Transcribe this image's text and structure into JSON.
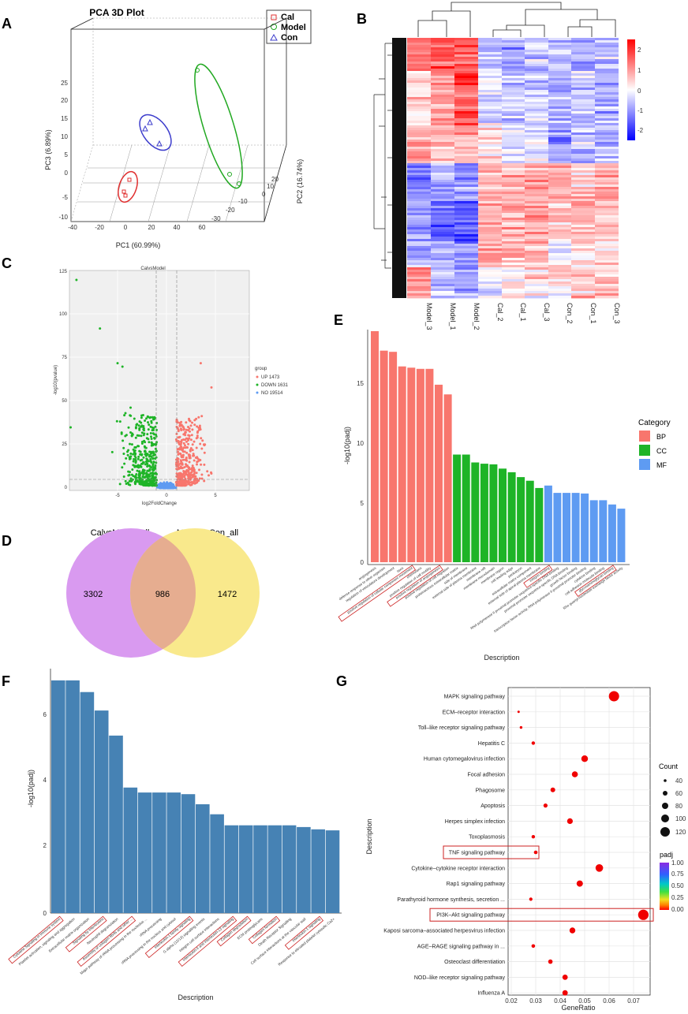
{
  "colors": {
    "cal": "#e03030",
    "model": "#21a821",
    "con": "#3d3dcc",
    "bp": "#f8766d",
    "cc": "#1eb427",
    "mf": "#5e9bf2",
    "steel": "#4682b4",
    "venn_left": "#d99af0",
    "venn_right": "#f9e98c",
    "venn_overlap": "#e6ad90",
    "heat_high": "#ff0000",
    "heat_low": "#0000ff",
    "highlight_box": "#cc2222"
  },
  "panelA": {
    "label": "A",
    "title": "PCA 3D Plot",
    "legend": [
      "Cal",
      "Model",
      "Con"
    ],
    "xlabel": "PC1 (60.99%)",
    "ylabel": "PC3 (6.89%)",
    "zlabel": "PC2 (16.74%)",
    "x_ticks": [
      "-40",
      "-20",
      "0",
      "20",
      "40",
      "60"
    ],
    "y_ticks": [
      "25",
      "20",
      "15",
      "10",
      "5",
      "0",
      "-5",
      "-10"
    ],
    "z_ticks": [
      "20",
      "10",
      "0",
      "-10",
      "-20",
      "-30"
    ]
  },
  "panelB": {
    "label": "B",
    "samples": [
      "Model_3",
      "Model_1",
      "Model_2",
      "Cal_2",
      "Cal_1",
      "Cal_3",
      "Con_2",
      "Con_1",
      "Con_3"
    ],
    "scale_ticks": [
      "2",
      "1",
      "0",
      "-1",
      "-2"
    ]
  },
  "panelC": {
    "label": "C",
    "title": "CalvsModel",
    "xlabel": "log2FoldChange",
    "ylabel": "-log10(pvalue)",
    "y_ticks": [
      "125",
      "100",
      "75",
      "50",
      "25",
      "0"
    ],
    "x_ticks": [
      "-5",
      "0",
      "5"
    ],
    "legend_title": "group",
    "legend_items": [
      "UP 1473",
      "DOWN 1631",
      "NO 19514"
    ]
  },
  "panelD": {
    "label": "D",
    "left_title": "CalvsModel_all",
    "right_title": "ModelvsCon_all",
    "left_only": "3302",
    "overlap": "986",
    "right_only": "1472"
  },
  "panelE": {
    "label": "E",
    "ylabel": "-log10(padj)",
    "xlabel": "Description",
    "y_ticks": [
      "15",
      "10",
      "5",
      "0"
    ],
    "legend_title": "Category",
    "legend_items": [
      "BP",
      "CC",
      "MF"
    ],
    "chart_data": {
      "type": "bar",
      "ylabel": "-log10(padj)",
      "xlabel": "Description",
      "ylim": [
        0,
        19
      ],
      "categories": [
        "angiogenesis",
        "defense response to other organism",
        "regulation of vasculature development",
        "taxis",
        "positive regulation of cellular component movement",
        "chemotaxis",
        "positive regulation of cell motility",
        "positive regulation of angiogenesis",
        "positive regulation of cell migration",
        "proteinaceous extracellular matrix",
        "side of membrane",
        "external side of plasma membrane",
        "membrane raft",
        "membrane microdomain",
        "membrane region",
        "cell leading edge",
        "perikaryon",
        "extracellular matrix component",
        "external side of apical plasma membrane",
        "integrin binding",
        "RNA polymerase II proximal promoter sequence-specific DNA binding",
        "proximal promoter sequence-specific DNA binding",
        "growth factor binding",
        "transcription factor activity, RNA polymerase II proximal promoter binding",
        "cytokine binding",
        "cell adhesion molecule binding",
        "glycosaminoglycan binding",
        "Rho guanyl-nucleotide exchange factor activity"
      ],
      "values": [
        19.0,
        17.4,
        17.3,
        16.1,
        16.0,
        15.9,
        15.9,
        14.6,
        13.8,
        8.85,
        8.85,
        8.2,
        8.1,
        8.05,
        7.7,
        7.4,
        7.0,
        6.7,
        6.1,
        6.3,
        5.7,
        5.7,
        5.7,
        5.65,
        5.1,
        5.1,
        4.75,
        4.4
      ],
      "category_groups": [
        "BP",
        "BP",
        "BP",
        "BP",
        "BP",
        "BP",
        "BP",
        "BP",
        "BP",
        "CC",
        "CC",
        "CC",
        "CC",
        "CC",
        "CC",
        "CC",
        "CC",
        "CC",
        "CC",
        "MF",
        "MF",
        "MF",
        "MF",
        "MF",
        "MF",
        "MF",
        "MF",
        "MF"
      ],
      "highlighted": [
        4,
        7,
        19,
        26
      ]
    }
  },
  "panelF": {
    "label": "F",
    "ylabel": "-log10(padj)",
    "xlabel": "Description",
    "y_ticks": [
      "6",
      "4",
      "2",
      "0"
    ],
    "chart_data": {
      "type": "bar",
      "ylabel": "-log10(padj)",
      "xlabel": "Description",
      "ylim": [
        0,
        7.3
      ],
      "categories": [
        "Cytokine Signaling in Immune system",
        "Platelet activation, signaling and aggregation",
        "Extracellular matrix organization",
        "Signaling by Interleukins",
        "Neutrophil degranulation",
        "Assembly of collagen fibrils and other ...",
        "Major pathway of rRNA processing in the nucleolus ...",
        "rRNA processing",
        "rRNA processing in the nucleus and cytosol",
        "Interleukin-1 family signaling",
        "G alpha (12/13) signalling events",
        "Integrin cell surface interactions",
        "Interleukin-4 and Interleukin-13 signaling",
        "Collagen degradation",
        "ECM proteoglycans",
        "Collagen formation",
        "Death Receptor Signalling",
        "Cell surface interactions at the vascular wall",
        "Interleukin-1 signaling",
        "Response to elevated platelet cytosolic Ca2+"
      ],
      "values": [
        6.95,
        6.95,
        6.6,
        6.05,
        5.3,
        3.75,
        3.6,
        3.6,
        3.6,
        3.55,
        3.25,
        2.95,
        2.62,
        2.62,
        2.62,
        2.62,
        2.62,
        2.57,
        2.5,
        2.47
      ],
      "highlighted": [
        0,
        3,
        5,
        9,
        12,
        13,
        15,
        18
      ]
    }
  },
  "panelG": {
    "label": "G",
    "xlabel": "GeneRatio",
    "ylabel": "Description",
    "x_ticks": [
      "0.02",
      "0.03",
      "0.04",
      "0.05",
      "0.06",
      "0.07"
    ],
    "count_title": "Count",
    "count_ticks": [
      "40",
      "60",
      "80",
      "100",
      "120"
    ],
    "padj_title": "padj",
    "padj_ticks": [
      "1.00",
      "0.75",
      "0.50",
      "0.25",
      "0.00"
    ],
    "chart_data": {
      "type": "scatter",
      "xlabel": "GeneRatio",
      "ylabel": "Description",
      "xlim": [
        0.02,
        0.077
      ],
      "categories": [
        "MAPK signaling pathway",
        "ECM–receptor interaction",
        "Toll–like receptor signaling pathway",
        "Hepatitis C",
        "Human cytomegalovirus infection",
        "Focal adhesion",
        "Phagosome",
        "Apoptosis",
        "Herpes simplex infection",
        "Toxoplasmosis",
        "TNF signaling pathway",
        "Cytokine–cytokine receptor interaction",
        "Rap1 signaling pathway",
        "Parathyroid hormone synthesis, secretion ...",
        "PI3K–Akt signaling pathway",
        "Kaposi sarcoma–associated herpesvirus infection",
        "AGE–RAGE signaling pathway in ...",
        "Osteoclast differentiation",
        "NOD–like receptor signaling pathway",
        "Influenza A"
      ],
      "gene_ratio": [
        0.062,
        0.023,
        0.024,
        0.029,
        0.05,
        0.046,
        0.037,
        0.034,
        0.044,
        0.029,
        0.03,
        0.056,
        0.048,
        0.028,
        0.074,
        0.045,
        0.029,
        0.036,
        0.042,
        0.042
      ],
      "count": [
        118,
        35,
        38,
        47,
        80,
        74,
        60,
        54,
        70,
        47,
        48,
        90,
        76,
        45,
        120,
        72,
        48,
        56,
        66,
        66
      ],
      "padj": [
        0.02,
        0.01,
        0.01,
        0.01,
        0.01,
        0.01,
        0.01,
        0.01,
        0.01,
        0.01,
        0.01,
        0.01,
        0.01,
        0.01,
        0.005,
        0.01,
        0.01,
        0.01,
        0.01,
        0.01
      ],
      "highlighted": [
        10,
        14
      ]
    }
  }
}
